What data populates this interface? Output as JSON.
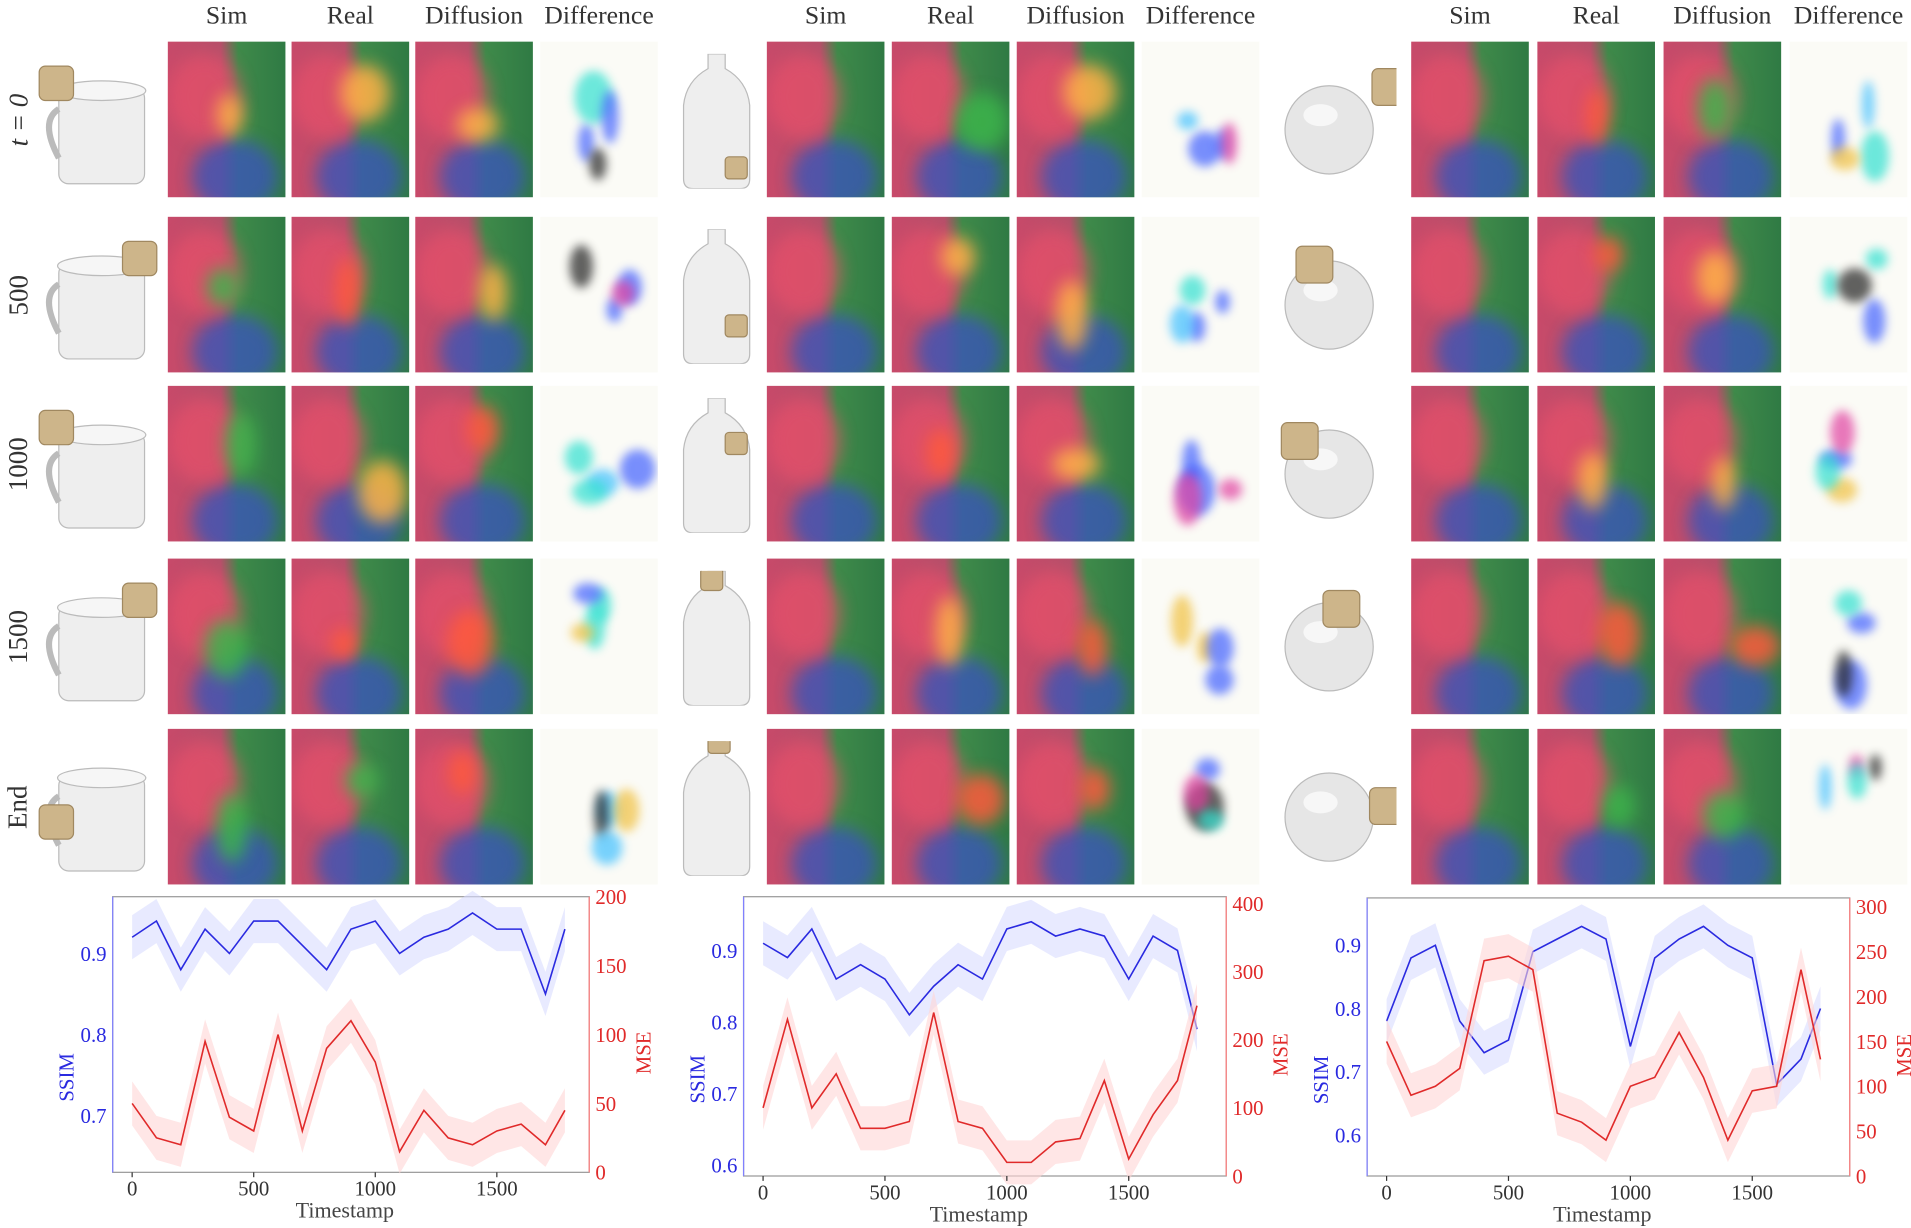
{
  "column_headers": [
    "Sim",
    "Real",
    "Diffusion",
    "Difference"
  ],
  "row_labels": [
    "t = 0",
    "500",
    "1000",
    "1500",
    "End"
  ],
  "objects": [
    "cup",
    "bottle",
    "ball"
  ],
  "colors": {
    "ssim": "#2a2ae0",
    "mse": "#e02a2a",
    "ssim_band": "#d8dcff",
    "mse_band": "#ffd6d6"
  },
  "chart_data": [
    {
      "type": "line",
      "xlabel": "Timestamp",
      "ylabel": "SSIM",
      "ylabel_right": "MSE",
      "x": [
        0,
        100,
        200,
        300,
        400,
        500,
        600,
        700,
        800,
        900,
        1000,
        1100,
        1200,
        1300,
        1400,
        1500,
        1600,
        1700,
        1780
      ],
      "xticks": [
        "0",
        "500",
        "1000",
        "1500"
      ],
      "xlim": [
        -80,
        1880
      ],
      "ylim": [
        0.63,
        0.97
      ],
      "yticks": [
        "0.7",
        "0.8",
        "0.9"
      ],
      "ylim_right": [
        0,
        200
      ],
      "yticks_right": [
        "0",
        "50",
        "100",
        "150",
        "200"
      ],
      "series": [
        {
          "name": "SSIM",
          "axis": "left",
          "values": [
            0.92,
            0.94,
            0.88,
            0.93,
            0.9,
            0.94,
            0.94,
            0.91,
            0.88,
            0.93,
            0.94,
            0.9,
            0.92,
            0.93,
            0.95,
            0.93,
            0.93,
            0.85,
            0.93
          ]
        },
        {
          "name": "MSE",
          "axis": "right",
          "values": [
            50,
            25,
            20,
            95,
            40,
            30,
            100,
            30,
            90,
            110,
            80,
            15,
            45,
            25,
            20,
            30,
            35,
            20,
            45
          ]
        }
      ]
    },
    {
      "type": "line",
      "xlabel": "Timestamp",
      "ylabel": "SSIM",
      "ylabel_right": "MSE",
      "x": [
        0,
        100,
        200,
        300,
        400,
        500,
        600,
        700,
        800,
        900,
        1000,
        1100,
        1200,
        1300,
        1400,
        1500,
        1600,
        1700,
        1780
      ],
      "xticks": [
        "0",
        "500",
        "1000",
        "1500"
      ],
      "xlim": [
        -80,
        1900
      ],
      "ylim": [
        0.585,
        0.975
      ],
      "yticks": [
        "0.6",
        "0.7",
        "0.8",
        "0.9"
      ],
      "ylim_right": [
        0,
        410
      ],
      "yticks_right": [
        "0",
        "100",
        "200",
        "300",
        "400"
      ],
      "series": [
        {
          "name": "SSIM",
          "axis": "left",
          "values": [
            0.91,
            0.89,
            0.93,
            0.86,
            0.88,
            0.86,
            0.81,
            0.85,
            0.88,
            0.86,
            0.93,
            0.94,
            0.92,
            0.93,
            0.92,
            0.86,
            0.92,
            0.9,
            0.79
          ]
        },
        {
          "name": "MSE",
          "axis": "right",
          "values": [
            100,
            230,
            100,
            150,
            70,
            70,
            80,
            240,
            80,
            70,
            20,
            20,
            50,
            55,
            140,
            25,
            90,
            140,
            250
          ]
        }
      ]
    },
    {
      "type": "line",
      "xlabel": "Timestamp",
      "ylabel": "SSIM",
      "ylabel_right": "MSE",
      "x": [
        0,
        100,
        200,
        300,
        400,
        500,
        600,
        700,
        800,
        900,
        1000,
        1100,
        1200,
        1300,
        1400,
        1500,
        1600,
        1700,
        1780
      ],
      "xticks": [
        "0",
        "500",
        "1000",
        "1500"
      ],
      "xlim": [
        -80,
        1900
      ],
      "ylim": [
        0.535,
        0.975
      ],
      "yticks": [
        "0.6",
        "0.7",
        "0.8",
        "0.9"
      ],
      "ylim_right": [
        0,
        310
      ],
      "yticks_right": [
        "0",
        "50",
        "100",
        "150",
        "200",
        "250",
        "300"
      ],
      "series": [
        {
          "name": "SSIM",
          "axis": "left",
          "values": [
            0.78,
            0.88,
            0.9,
            0.78,
            0.73,
            0.75,
            0.89,
            0.91,
            0.93,
            0.91,
            0.74,
            0.88,
            0.91,
            0.93,
            0.9,
            0.88,
            0.68,
            0.72,
            0.8
          ]
        },
        {
          "name": "MSE",
          "axis": "right",
          "values": [
            150,
            90,
            100,
            120,
            240,
            245,
            230,
            70,
            60,
            40,
            100,
            110,
            160,
            110,
            40,
            95,
            100,
            230,
            130
          ]
        }
      ]
    }
  ]
}
